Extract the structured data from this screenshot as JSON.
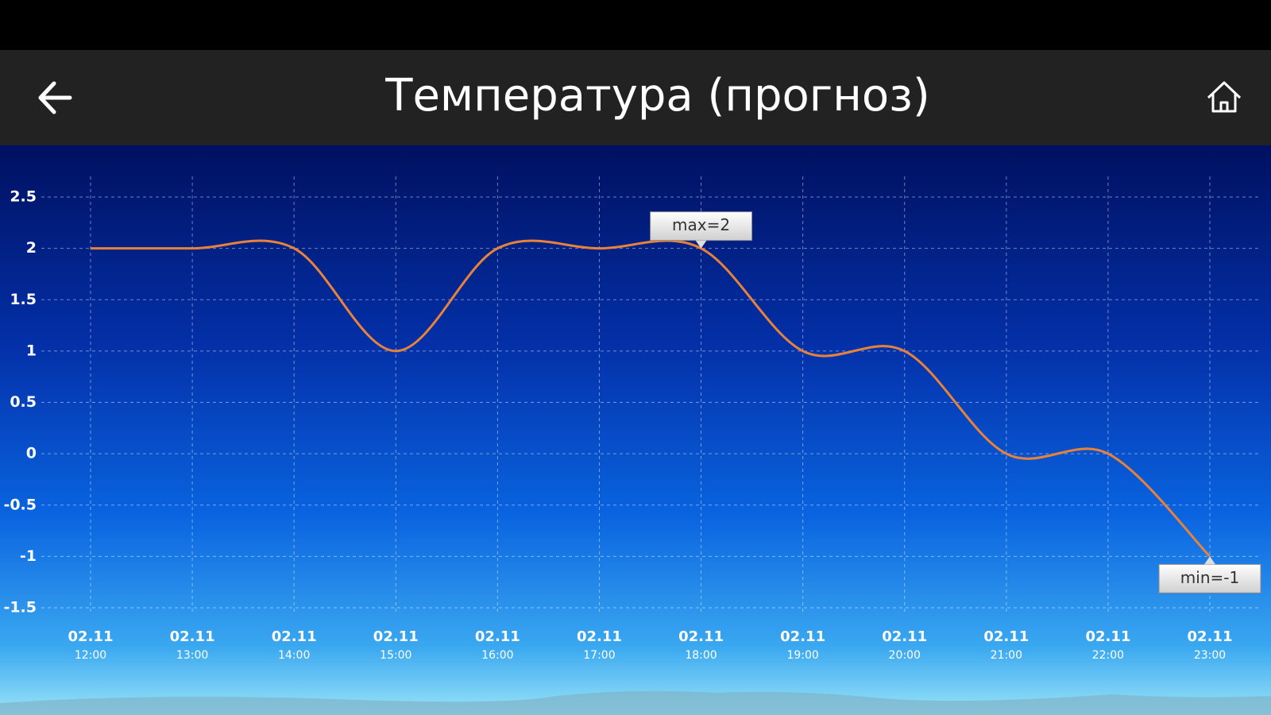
{
  "header": {
    "title": "Температура (прогноз)"
  },
  "chart_data": {
    "type": "line",
    "categories": [
      [
        "02.11",
        "12:00"
      ],
      [
        "02.11",
        "13:00"
      ],
      [
        "02.11",
        "14:00"
      ],
      [
        "02.11",
        "15:00"
      ],
      [
        "02.11",
        "16:00"
      ],
      [
        "02.11",
        "17:00"
      ],
      [
        "02.11",
        "18:00"
      ],
      [
        "02.11",
        "19:00"
      ],
      [
        "02.11",
        "20:00"
      ],
      [
        "02.11",
        "21:00"
      ],
      [
        "02.11",
        "22:00"
      ],
      [
        "02.11",
        "23:00"
      ]
    ],
    "series": [
      {
        "color": "#e8823a",
        "values": [
          2,
          2,
          2,
          1,
          2,
          2,
          2,
          1,
          1,
          0,
          0,
          -1
        ]
      }
    ],
    "ylim": [
      -1.5,
      2.5
    ],
    "yticks": [
      -1.5,
      -1,
      -0.5,
      0,
      0.5,
      1,
      1.5,
      2,
      2.5
    ],
    "grid": true,
    "max_label": "max=2",
    "min_label": "min=-1"
  }
}
